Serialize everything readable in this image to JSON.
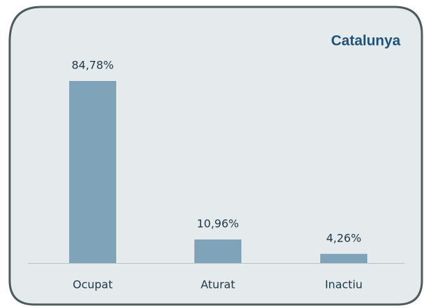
{
  "chart_data": {
    "type": "bar",
    "title": "Catalunya",
    "categories": [
      "Ocupat",
      "Aturat",
      "Inactiu"
    ],
    "values": [
      84.78,
      10.96,
      4.26
    ],
    "value_labels": [
      "84,78%",
      "10,96%",
      "4,26%"
    ],
    "color": "#7fa3b8"
  }
}
